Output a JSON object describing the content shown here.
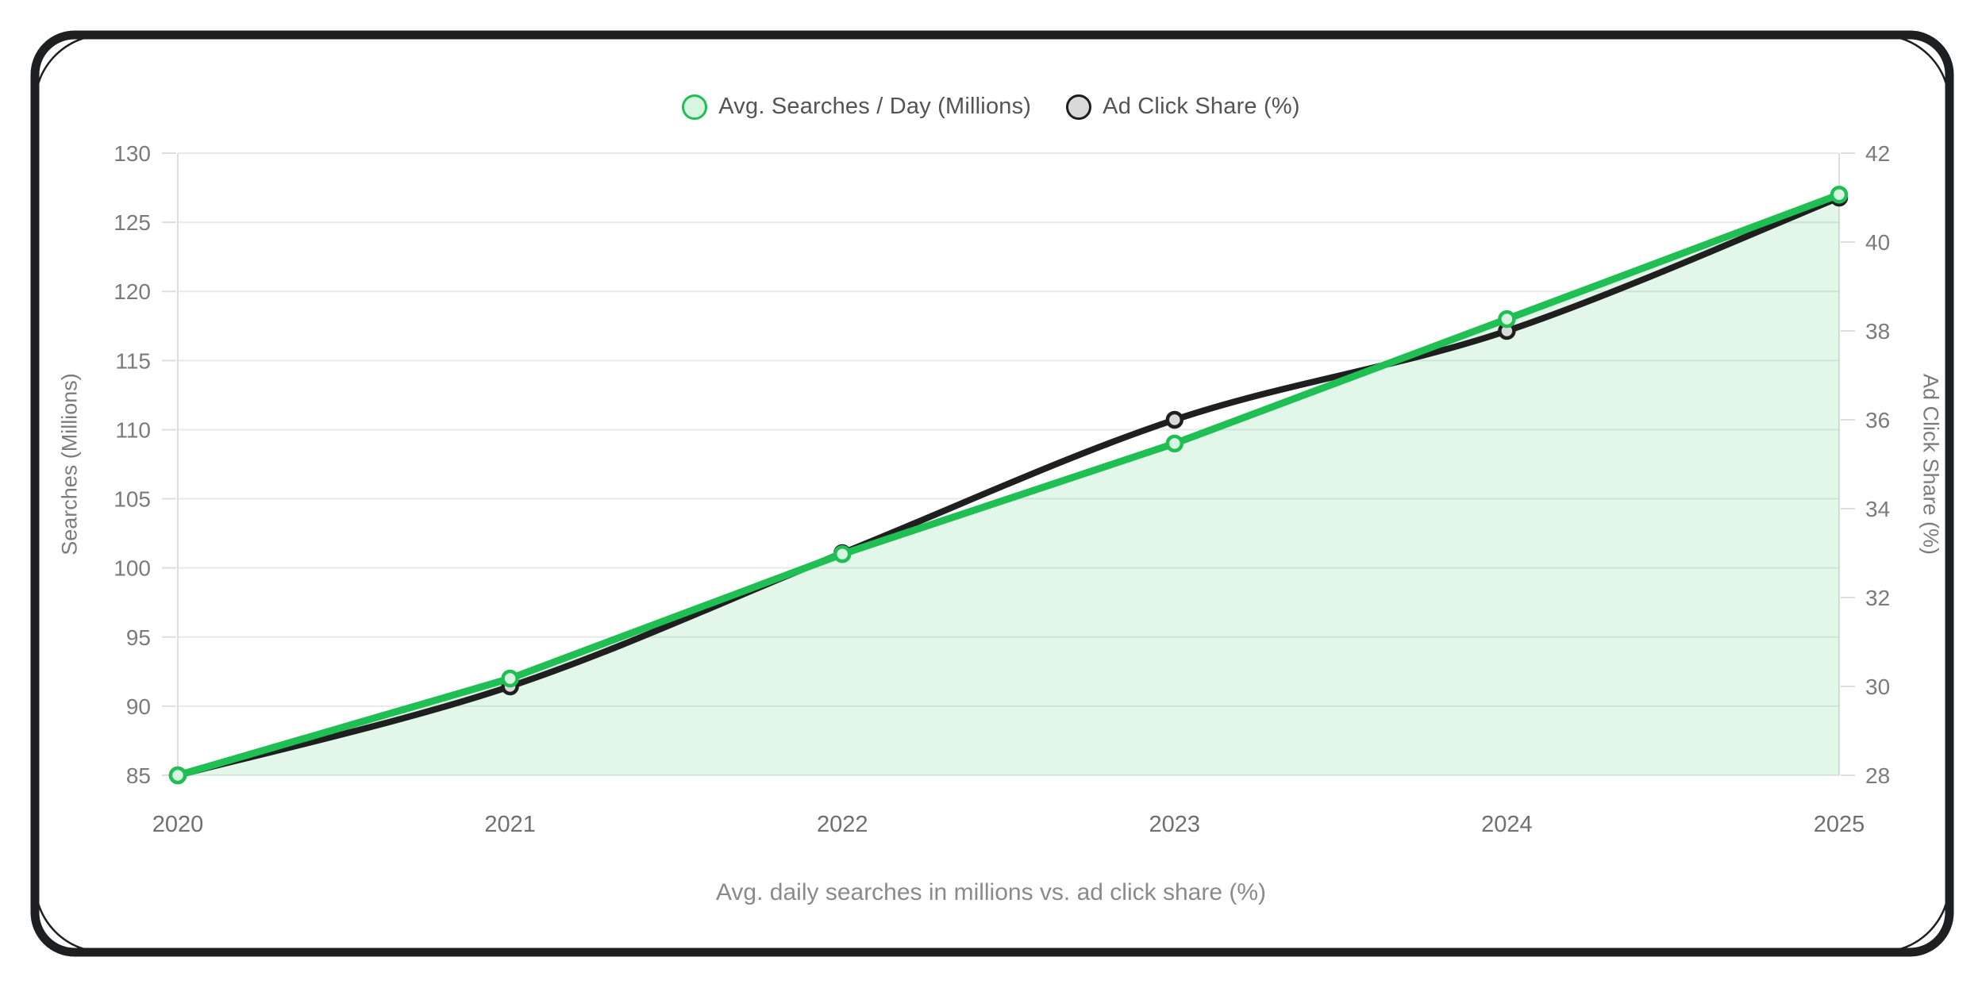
{
  "legend": {
    "items": [
      {
        "label": "Avg. Searches / Day (Millions)",
        "swatch_fill": "#d8f5e2",
        "swatch_stroke": "#1fbf54"
      },
      {
        "label": "Ad Click Share (%)",
        "swatch_fill": "#d9d9d9",
        "swatch_stroke": "#1d1d1d"
      }
    ]
  },
  "caption": "Avg. daily searches in millions vs. ad click share (%)",
  "chart_data": {
    "type": "line",
    "x": [
      2020,
      2021,
      2022,
      2023,
      2024,
      2025
    ],
    "series": [
      {
        "name": "Avg. Searches / Day (Millions)",
        "axis": "left",
        "values": [
          85,
          92,
          101,
          109,
          118,
          127
        ],
        "color": "#1fbf54",
        "area_fill": "rgba(31,191,84,0.13)",
        "marker_fill": "#d8f5e2",
        "smooth": false,
        "area": true,
        "line_width": 9
      },
      {
        "name": "Ad Click Share (%)",
        "axis": "right",
        "values": [
          28,
          30,
          33,
          36,
          38,
          41
        ],
        "color": "#1f1f1f",
        "area_fill": null,
        "marker_fill": "#d9d9d9",
        "smooth": true,
        "area": false,
        "line_width": 8
      }
    ],
    "left_axis": {
      "title": "Searches (Millions)",
      "min": 85,
      "max": 130,
      "tick_step": 5
    },
    "right_axis": {
      "title": "Ad Click Share (%)",
      "min": 28,
      "max": 42,
      "tick_step": 2
    },
    "grid": true,
    "legend_position": "top",
    "colors": {
      "tick_label": "#7b7b7b",
      "year_label": "#6f6f6f",
      "gridline": "#e9e9e9",
      "axis_line": "#dedede",
      "frame": "#1d1f20"
    }
  }
}
